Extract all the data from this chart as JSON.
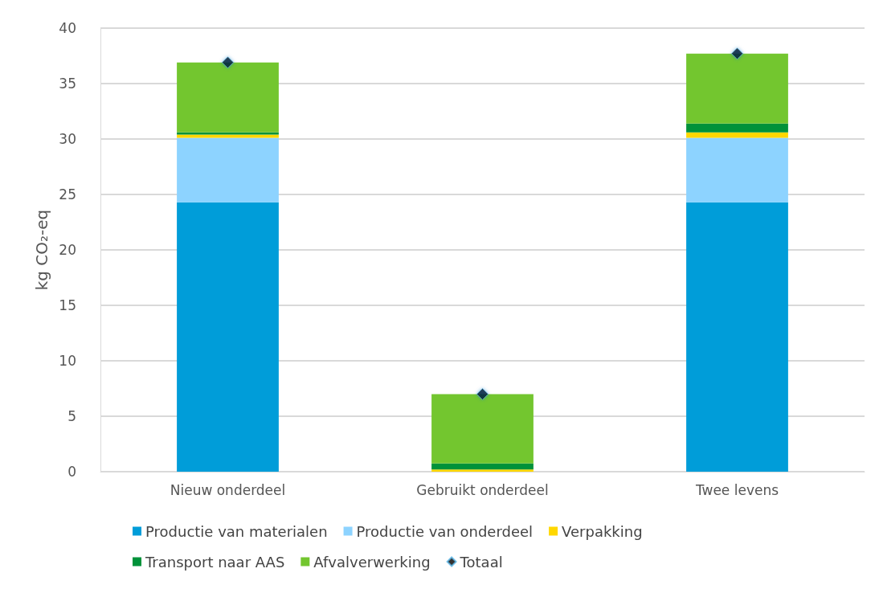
{
  "chart_data": {
    "type": "bar",
    "stacked": true,
    "ylabel": "kg CO₂-eq",
    "categories": [
      "Nieuw onderdeel",
      "Gebruikt onderdeel",
      "Twee levens"
    ],
    "ylim": [
      0,
      40
    ],
    "yticks": [
      0,
      5,
      10,
      15,
      20,
      25,
      30,
      35,
      40
    ],
    "grid": "y",
    "legend": "bottom",
    "series": [
      {
        "name": "Productie van materialen",
        "color": "#009dd9",
        "values": [
          24.3,
          0,
          24.3
        ]
      },
      {
        "name": "Productie van onderdeel",
        "color": "#8dd3ff",
        "values": [
          5.8,
          0,
          5.8
        ]
      },
      {
        "name": "Verpakking",
        "color": "#ffd700",
        "values": [
          0.3,
          0.2,
          0.5
        ]
      },
      {
        "name": "Transport naar AAS",
        "color": "#00923a",
        "values": [
          0.2,
          0.55,
          0.8
        ]
      },
      {
        "name": "Afvalverwerking",
        "color": "#73c62f",
        "values": [
          6.3,
          6.25,
          6.3
        ]
      },
      {
        "name": "Totaal",
        "type": "scatter",
        "marker": "diamond",
        "color": "#000000",
        "x": [
          "Nieuw onderdeel",
          "Gebruikt onderdeel",
          "Twee levens"
        ],
        "values": [
          36.9,
          7.0,
          37.7
        ]
      }
    ]
  }
}
